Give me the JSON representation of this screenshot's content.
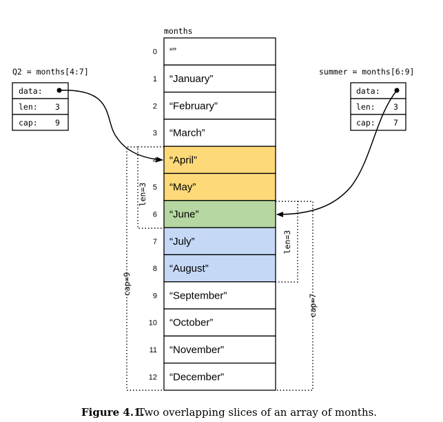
{
  "array": {
    "name": "months",
    "cells": [
      {
        "index": "0",
        "value": "“”",
        "fill": "#ffffff"
      },
      {
        "index": "1",
        "value": "“January”",
        "fill": "#ffffff"
      },
      {
        "index": "2",
        "value": "“February”",
        "fill": "#ffffff"
      },
      {
        "index": "3",
        "value": "“March”",
        "fill": "#ffffff"
      },
      {
        "index": "4",
        "value": "“April”",
        "fill": "#fdd97a"
      },
      {
        "index": "5",
        "value": "“May”",
        "fill": "#fdd97a"
      },
      {
        "index": "6",
        "value": "“June”",
        "fill": "#b6d7a1"
      },
      {
        "index": "7",
        "value": "“July”",
        "fill": "#c5d8f5"
      },
      {
        "index": "8",
        "value": "“August”",
        "fill": "#c5d8f5"
      },
      {
        "index": "9",
        "value": "“September”",
        "fill": "#ffffff"
      },
      {
        "index": "10",
        "value": "“October”",
        "fill": "#ffffff"
      },
      {
        "index": "11",
        "value": "“November”",
        "fill": "#ffffff"
      },
      {
        "index": "12",
        "value": "“December”",
        "fill": "#ffffff"
      }
    ]
  },
  "q2": {
    "title": "Q2 = months[4:7]",
    "data_label": "data:",
    "len_label": "len:",
    "len_value": "3",
    "cap_label": "cap:",
    "cap_value": "9",
    "points_to_index": 4
  },
  "summer": {
    "title": "summer = months[6:9]",
    "data_label": "data:",
    "len_label": "len:",
    "len_value": "3",
    "cap_label": "cap:",
    "cap_value": "7",
    "points_to_index": 6
  },
  "annotations": {
    "q2_len": "len=3",
    "q2_cap": "cap=9",
    "summer_len": "len=3",
    "summer_cap": "cap=7"
  },
  "caption": {
    "label": "Figure 4.1.",
    "text": "Two overlapping slices of an array of months."
  }
}
